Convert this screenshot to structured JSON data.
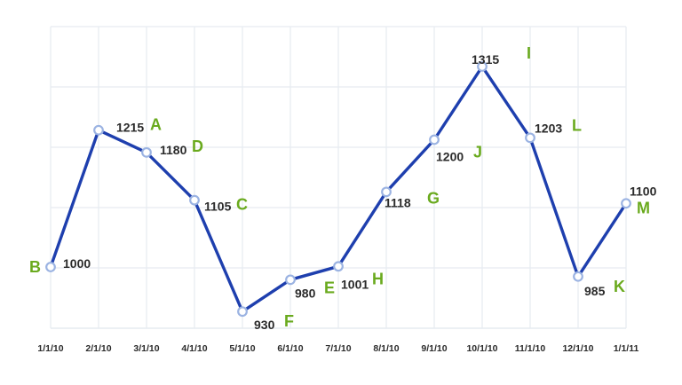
{
  "chart_data": {
    "type": "line",
    "title": "",
    "xlabel": "",
    "ylabel": "",
    "categories": [
      "1/1/10",
      "2/1/10",
      "3/1/10",
      "4/1/10",
      "5/1/10",
      "6/1/10",
      "7/1/10",
      "8/1/10",
      "9/1/10",
      "10/1/10",
      "11/1/10",
      "12/1/10",
      "1/1/11"
    ],
    "series": [
      {
        "values": [
          1000,
          1215,
          1180,
          1105,
          930,
          980,
          1001,
          1118,
          1200,
          1315,
          1203,
          985,
          1100
        ],
        "point_letters": [
          "B",
          "A",
          "D",
          "C",
          "F",
          "E",
          "H",
          "G",
          "J",
          "I",
          "L",
          "K",
          "M"
        ],
        "color": "#1e3fae"
      }
    ],
    "ylim": [
      900,
      1350
    ],
    "grid": true,
    "colors": {
      "line": "#1e3fae",
      "point_stroke": "#9bb3e2",
      "letter": "#6aaa1e",
      "grid": "#e6ebf1",
      "value_text": "#2b2b2b"
    }
  }
}
